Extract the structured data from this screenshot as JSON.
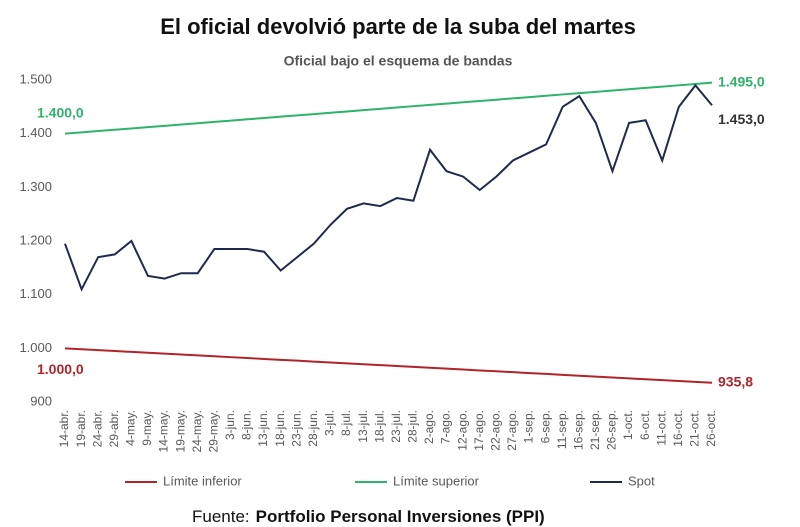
{
  "chart_data": {
    "type": "line",
    "title": "El oficial devolvió parte de la suba del martes",
    "subtitle": "Oficial bajo el esquema de bandas",
    "source": {
      "label": "Fuente:",
      "name": "Portfolio Personal Inversiones (PPI)"
    },
    "categories": [
      "14-abr.",
      "19-abr.",
      "24-abr.",
      "29-abr.",
      "4-may.",
      "9-may.",
      "14-may.",
      "19-may.",
      "24-may.",
      "29-may.",
      "3-jun.",
      "8-jun.",
      "13-jun.",
      "18-jun.",
      "23-jun.",
      "28-jun.",
      "3-jul.",
      "8-jul.",
      "13-jul.",
      "18-jul.",
      "23-jul.",
      "28-jul.",
      "2-ago.",
      "7-ago.",
      "12-ago.",
      "17-ago.",
      "22-ago.",
      "27-ago.",
      "1-sep.",
      "6-sep.",
      "11-sep.",
      "16-sep.",
      "21-sep.",
      "26-sep.",
      "1-oct.",
      "6-oct.",
      "11-oct.",
      "16-oct.",
      "21-oct.",
      "26-oct."
    ],
    "ylim": [
      900,
      1500
    ],
    "yticks": [
      900,
      {
        "value": 1000,
        "label": "1.000"
      },
      {
        "value": 1100,
        "label": "1.100"
      },
      {
        "value": 1200,
        "label": "1.200"
      },
      {
        "value": 1300,
        "label": "1.300"
      },
      {
        "value": 1400,
        "label": "1.400"
      },
      {
        "value": 1500,
        "label": "1.500"
      }
    ],
    "grid": false,
    "series": [
      {
        "name": "Límite inferior",
        "color": "#b0252a",
        "values": [
          1000,
          998.4,
          996.7,
          995.1,
          993.4,
          991.8,
          990.1,
          988.5,
          986.8,
          985.2,
          983.5,
          981.9,
          980.2,
          978.6,
          977.0,
          975.3,
          973.7,
          972.0,
          970.4,
          968.7,
          967.1,
          965.4,
          963.8,
          962.1,
          960.5,
          958.8,
          957.2,
          955.6,
          953.9,
          952.3,
          950.6,
          949.0,
          947.3,
          945.7,
          944.0,
          942.4,
          940.8,
          939.1,
          937.5,
          935.8
        ],
        "value_labels": [
          "1.000,0",
          null,
          null,
          null,
          null,
          null,
          null,
          null,
          null,
          null,
          null,
          null,
          null,
          null,
          null,
          null,
          null,
          null,
          null,
          null,
          null,
          null,
          null,
          null,
          null,
          null,
          null,
          null,
          null,
          null,
          null,
          null,
          null,
          null,
          null,
          null,
          null,
          null,
          null,
          "935,8"
        ]
      },
      {
        "name": "Límite superior",
        "color": "#2db36b",
        "values": [
          1400,
          1402.4,
          1404.9,
          1407.3,
          1409.7,
          1412.2,
          1414.6,
          1417.1,
          1419.5,
          1421.9,
          1424.4,
          1426.8,
          1429.2,
          1431.7,
          1434.1,
          1436.5,
          1439.0,
          1441.4,
          1443.8,
          1446.3,
          1448.7,
          1451.2,
          1453.6,
          1456.0,
          1458.5,
          1460.9,
          1463.3,
          1465.8,
          1468.2,
          1470.6,
          1473.1,
          1475.5,
          1477.9,
          1480.4,
          1482.8,
          1485.3,
          1487.7,
          1490.1,
          1492.6,
          1495
        ],
        "value_labels": [
          "1.400,0",
          null,
          null,
          null,
          null,
          null,
          null,
          null,
          null,
          null,
          null,
          null,
          null,
          null,
          null,
          null,
          null,
          null,
          null,
          null,
          null,
          null,
          null,
          null,
          null,
          null,
          null,
          null,
          null,
          null,
          null,
          null,
          null,
          null,
          null,
          null,
          null,
          null,
          null,
          "1.495,0"
        ]
      },
      {
        "name": "Spot",
        "color": "#1f2a4d",
        "values": [
          1195,
          1110,
          1170,
          1175,
          1200,
          1135,
          1130,
          1140,
          1140,
          1185,
          1185,
          1185,
          1180,
          1145,
          1170,
          1195,
          1230,
          1260,
          1270,
          1265,
          1280,
          1275,
          1370,
          1330,
          1320,
          1295,
          1320,
          1350,
          1365,
          1380,
          1450,
          1470,
          1420,
          1330,
          1420,
          1425,
          1350,
          1450,
          1490,
          1453
        ],
        "value_labels": [
          null,
          null,
          null,
          null,
          null,
          null,
          null,
          null,
          null,
          null,
          null,
          null,
          null,
          null,
          null,
          null,
          null,
          null,
          null,
          null,
          null,
          null,
          null,
          null,
          null,
          null,
          null,
          null,
          null,
          null,
          null,
          null,
          null,
          null,
          null,
          null,
          null,
          null,
          null,
          "1.453,0"
        ]
      }
    ]
  }
}
